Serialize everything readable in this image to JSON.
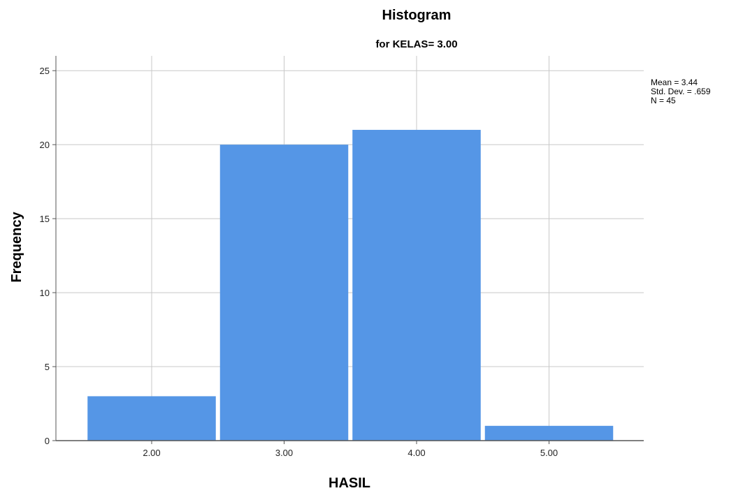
{
  "chart_data": {
    "type": "bar",
    "title": "Histogram",
    "subtitle": "for KELAS= 3.00",
    "xlabel": "HASIL",
    "ylabel": "Frequency",
    "categories": [
      "2.00",
      "3.00",
      "4.00",
      "5.00"
    ],
    "values": [
      3,
      20,
      21,
      1
    ],
    "ylim": [
      0,
      26
    ],
    "yticks": [
      0,
      5,
      10,
      15,
      20,
      25
    ],
    "grid": true,
    "bar_color": "#5596e6",
    "stats": {
      "mean": "Mean = 3.44",
      "std": "Std. Dev. = .659",
      "n": "N = 45"
    }
  }
}
